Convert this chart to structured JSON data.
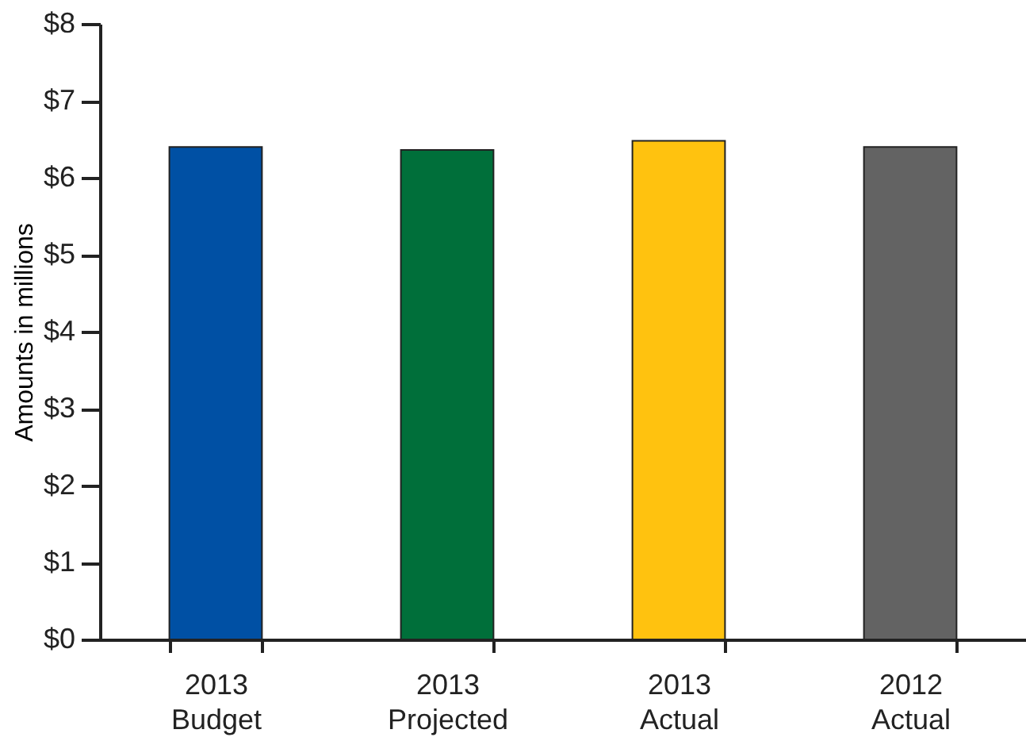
{
  "chart_data": {
    "type": "bar",
    "ylabel": "Amounts in millions",
    "categories": [
      "2013\nBudget",
      "2013\nProjected",
      "2013\nActual",
      "2012\nActual"
    ],
    "values": [
      6.4,
      6.36,
      6.48,
      6.4
    ],
    "colors": [
      "#0050a4",
      "#006f3a",
      "#ffc20f",
      "#636363"
    ],
    "ylim": [
      0,
      8
    ],
    "yticks": [
      {
        "value": 0,
        "label": "$0"
      },
      {
        "value": 1,
        "label": "$1"
      },
      {
        "value": 2,
        "label": "$2"
      },
      {
        "value": 3,
        "label": "$3"
      },
      {
        "value": 4,
        "label": "$4"
      },
      {
        "value": 5,
        "label": "$5"
      },
      {
        "value": 6,
        "label": "$6"
      },
      {
        "value": 7,
        "label": "$7"
      },
      {
        "value": 8,
        "label": "$8"
      }
    ],
    "grid": false
  }
}
